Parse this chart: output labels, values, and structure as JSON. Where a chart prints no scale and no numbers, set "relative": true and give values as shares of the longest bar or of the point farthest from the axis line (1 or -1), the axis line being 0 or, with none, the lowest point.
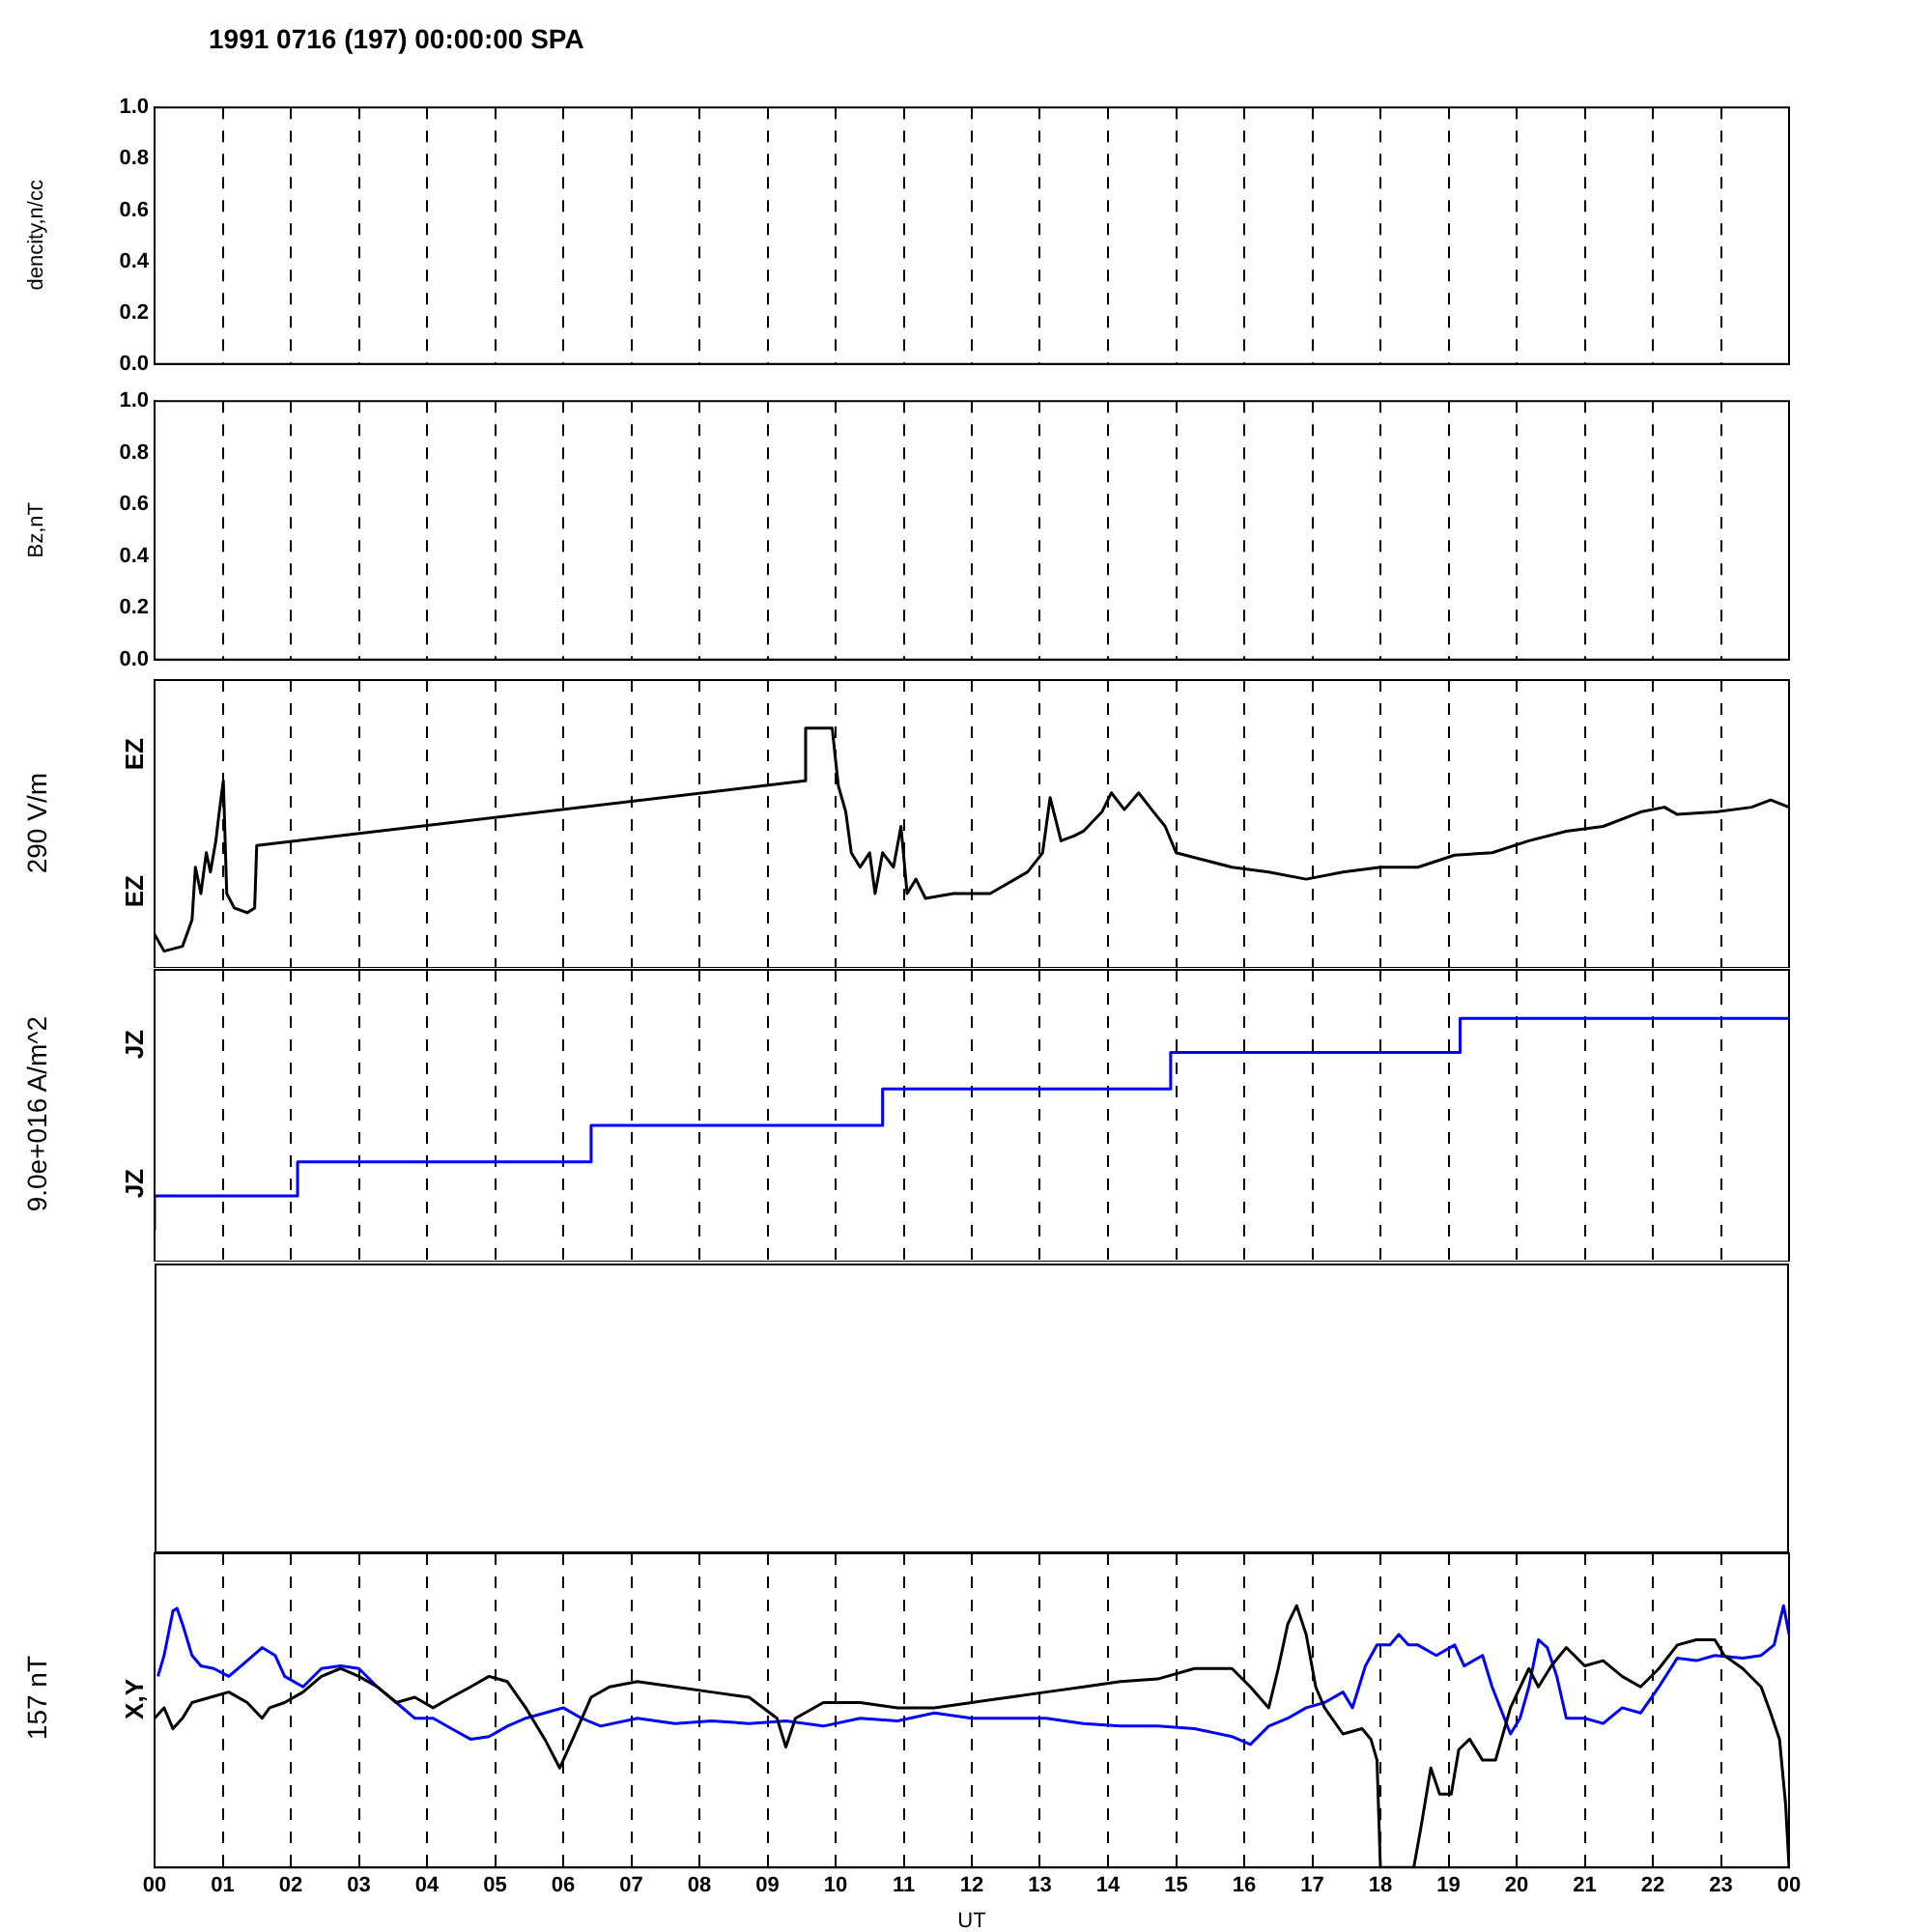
{
  "chart_data": [
    {
      "type": "line",
      "title": "1991 0716 (197) 00:00:00 SPA",
      "ylabel": "dencity,n/cc",
      "xlim": [
        0,
        24
      ],
      "ylim": [
        0,
        1
      ],
      "yticks": [
        {
          "value": 0,
          "label": "0.0"
        },
        {
          "value": 0.2,
          "label": "0.2"
        },
        {
          "value": 0.4,
          "label": "0.4"
        },
        {
          "value": 0.6,
          "label": "0.6"
        },
        {
          "value": 0.8,
          "label": "0.8"
        },
        {
          "value": 1,
          "label": "1.0"
        }
      ],
      "xticks": [
        {
          "value": 0,
          "label": null
        },
        {
          "value": 1,
          "label": null
        },
        {
          "value": 2,
          "label": null
        },
        {
          "value": 3,
          "label": null
        },
        {
          "value": 4,
          "label": null
        },
        {
          "value": 5,
          "label": null
        },
        {
          "value": 6,
          "label": null
        },
        {
          "value": 7,
          "label": null
        },
        {
          "value": 8,
          "label": null
        },
        {
          "value": 9,
          "label": null
        },
        {
          "value": 10,
          "label": null
        },
        {
          "value": 11,
          "label": null
        },
        {
          "value": 12,
          "label": null
        },
        {
          "value": 13,
          "label": null
        },
        {
          "value": 14,
          "label": null
        },
        {
          "value": 15,
          "label": null
        },
        {
          "value": 16,
          "label": null
        },
        {
          "value": 17,
          "label": null
        },
        {
          "value": 18,
          "label": null
        },
        {
          "value": 19,
          "label": null
        },
        {
          "value": 20,
          "label": null
        },
        {
          "value": 21,
          "label": null
        },
        {
          "value": 22,
          "label": null
        },
        {
          "value": 23,
          "label": null
        },
        {
          "value": 24,
          "label": null
        }
      ],
      "tick_labels": "y",
      "grid": "x"
    },
    {
      "type": "line",
      "ylabel": "Bz,nT",
      "xlim": [
        0,
        24
      ],
      "ylim": [
        0,
        1
      ],
      "yticks": [
        {
          "value": 0,
          "label": "0.0"
        },
        {
          "value": 0.2,
          "label": "0.2"
        },
        {
          "value": 0.4,
          "label": "0.4"
        },
        {
          "value": 0.6,
          "label": "0.6"
        },
        {
          "value": 0.8,
          "label": "0.8"
        },
        {
          "value": 1,
          "label": "1.0"
        }
      ],
      "xticks": [
        {
          "value": 0,
          "label": null
        },
        {
          "value": 1,
          "label": null
        },
        {
          "value": 2,
          "label": null
        },
        {
          "value": 3,
          "label": null
        },
        {
          "value": 4,
          "label": null
        },
        {
          "value": 5,
          "label": null
        },
        {
          "value": 6,
          "label": null
        },
        {
          "value": 7,
          "label": null
        },
        {
          "value": 8,
          "label": null
        },
        {
          "value": 9,
          "label": null
        },
        {
          "value": 10,
          "label": null
        },
        {
          "value": 11,
          "label": null
        },
        {
          "value": 12,
          "label": null
        },
        {
          "value": 13,
          "label": null
        },
        {
          "value": 14,
          "label": null
        },
        {
          "value": 15,
          "label": null
        },
        {
          "value": 16,
          "label": null
        },
        {
          "value": 17,
          "label": null
        },
        {
          "value": 18,
          "label": null
        },
        {
          "value": 19,
          "label": null
        },
        {
          "value": 20,
          "label": null
        },
        {
          "value": 21,
          "label": null
        },
        {
          "value": 22,
          "label": null
        },
        {
          "value": 23,
          "label": null
        },
        {
          "value": 24,
          "label": null
        }
      ],
      "tick_labels": "y",
      "grid": "x"
    },
    {
      "type": "line",
      "ylabel": "290 V/m",
      "annotations": [
        "EZ",
        "EZ"
      ],
      "relative": true,
      "xlim": [
        0,
        24
      ],
      "xticks": [
        {
          "value": 0,
          "label": null
        },
        {
          "value": 1,
          "label": null
        },
        {
          "value": 2,
          "label": null
        },
        {
          "value": 3,
          "label": null
        },
        {
          "value": 4,
          "label": null
        },
        {
          "value": 5,
          "label": null
        },
        {
          "value": 6,
          "label": null
        },
        {
          "value": 7,
          "label": null
        },
        {
          "value": 8,
          "label": null
        },
        {
          "value": 9,
          "label": null
        },
        {
          "value": 10,
          "label": null
        },
        {
          "value": 11,
          "label": null
        },
        {
          "value": 12,
          "label": null
        },
        {
          "value": 13,
          "label": null
        },
        {
          "value": 14,
          "label": null
        },
        {
          "value": 15,
          "label": null
        },
        {
          "value": 16,
          "label": null
        },
        {
          "value": 17,
          "label": null
        },
        {
          "value": 18,
          "label": null
        },
        {
          "value": 19,
          "label": null
        },
        {
          "value": 20,
          "label": null
        },
        {
          "value": 21,
          "label": null
        },
        {
          "value": 22,
          "label": null
        },
        {
          "value": 23,
          "label": null
        },
        {
          "value": 24,
          "label": null
        }
      ],
      "tick_labels": false,
      "grid": "x",
      "series": [
        {
          "color": "#000000",
          "x": [
            0,
            0.14,
            0.41,
            0.55,
            0.6,
            0.68,
            0.76,
            0.82,
            0.9,
            0.95,
            1.01,
            1.06,
            1.17,
            1.36,
            1.47,
            1.5,
            9.55,
            9.56,
            9.95,
            10.04,
            10.15,
            10.23,
            10.36,
            10.5,
            10.58,
            10.69,
            10.85,
            10.96,
            11.05,
            11.18,
            11.32,
            11.73,
            12.27,
            12.82,
            13.04,
            13.15,
            13.31,
            13.5,
            13.64,
            13.91,
            14.05,
            14.24,
            14.45,
            14.67,
            14.84,
            15.0,
            15.27,
            15.82,
            16.36,
            16.91,
            17.45,
            18.0,
            18.55,
            19.09,
            19.64,
            20.18,
            20.73,
            21.27,
            21.82,
            22.17,
            22.36,
            22.91,
            23.45,
            23.73,
            24
          ],
          "values": [
            0.14,
            0.07,
            0.09,
            0.2,
            0.42,
            0.31,
            0.48,
            0.4,
            0.53,
            0.65,
            0.78,
            0.31,
            0.25,
            0.23,
            0.25,
            0.51,
            0.78,
            1.0,
            1.0,
            0.76,
            0.65,
            0.48,
            0.42,
            0.48,
            0.31,
            0.48,
            0.42,
            0.59,
            0.31,
            0.37,
            0.29,
            0.31,
            0.31,
            0.4,
            0.48,
            0.71,
            0.53,
            0.55,
            0.57,
            0.65,
            0.73,
            0.66,
            0.73,
            0.65,
            0.59,
            0.48,
            0.46,
            0.42,
            0.4,
            0.37,
            0.4,
            0.42,
            0.42,
            0.47,
            0.48,
            0.53,
            0.57,
            0.59,
            0.65,
            0.67,
            0.64,
            0.65,
            0.67,
            0.7,
            0.67
          ]
        }
      ]
    },
    {
      "type": "line",
      "ylabel": "9.0e+016 A/m^2",
      "annotations": [
        "JZ",
        "JZ"
      ],
      "relative": true,
      "xlim": [
        0,
        24
      ],
      "xticks": [
        {
          "value": 0,
          "label": null
        },
        {
          "value": 1,
          "label": null
        },
        {
          "value": 2,
          "label": null
        },
        {
          "value": 3,
          "label": null
        },
        {
          "value": 4,
          "label": null
        },
        {
          "value": 5,
          "label": null
        },
        {
          "value": 6,
          "label": null
        },
        {
          "value": 7,
          "label": null
        },
        {
          "value": 8,
          "label": null
        },
        {
          "value": 9,
          "label": null
        },
        {
          "value": 10,
          "label": null
        },
        {
          "value": 11,
          "label": null
        },
        {
          "value": 12,
          "label": null
        },
        {
          "value": 13,
          "label": null
        },
        {
          "value": 14,
          "label": null
        },
        {
          "value": 15,
          "label": null
        },
        {
          "value": 16,
          "label": null
        },
        {
          "value": 17,
          "label": null
        },
        {
          "value": 18,
          "label": null
        },
        {
          "value": 19,
          "label": null
        },
        {
          "value": 20,
          "label": null
        },
        {
          "value": 21,
          "label": null
        },
        {
          "value": 22,
          "label": null
        },
        {
          "value": 23,
          "label": null
        },
        {
          "value": 24,
          "label": null
        }
      ],
      "tick_labels": false,
      "grid": "x",
      "series": [
        {
          "type": "step",
          "color": "#0000ff",
          "x": [
            0,
            2.1,
            6.41,
            10.69,
            14.92,
            19.17,
            23.4,
            24
          ],
          "values": [
            0.13,
            0.27,
            0.41,
            0.56,
            0.71,
            0.86,
            1.0,
            1.0
          ]
        }
      ]
    },
    {
      "type": "other"
    },
    {
      "type": "line",
      "ylabel": "157 nT",
      "annotations": [
        "X,Y"
      ],
      "xlabel": "UT",
      "relative": true,
      "xlim": [
        0,
        24
      ],
      "xticks": [
        {
          "value": 0,
          "label": "00"
        },
        {
          "value": 1,
          "label": "01"
        },
        {
          "value": 2,
          "label": "02"
        },
        {
          "value": 3,
          "label": "03"
        },
        {
          "value": 4,
          "label": "04"
        },
        {
          "value": 5,
          "label": "05"
        },
        {
          "value": 6,
          "label": "06"
        },
        {
          "value": 7,
          "label": "07"
        },
        {
          "value": 8,
          "label": "08"
        },
        {
          "value": 9,
          "label": "09"
        },
        {
          "value": 10,
          "label": "10"
        },
        {
          "value": 11,
          "label": "11"
        },
        {
          "value": 12,
          "label": "12"
        },
        {
          "value": 13,
          "label": "13"
        },
        {
          "value": 14,
          "label": "14"
        },
        {
          "value": 15,
          "label": "15"
        },
        {
          "value": 16,
          "label": "16"
        },
        {
          "value": 17,
          "label": "17"
        },
        {
          "value": 18,
          "label": "18"
        },
        {
          "value": 19,
          "label": "19"
        },
        {
          "value": 20,
          "label": "20"
        },
        {
          "value": 21,
          "label": "21"
        },
        {
          "value": 22,
          "label": "22"
        },
        {
          "value": 23,
          "label": "23"
        },
        {
          "value": 24,
          "label": "00"
        }
      ],
      "tick_labels": "x",
      "grid": "x",
      "series": [
        {
          "color": "#000000",
          "x": [
            0,
            0.14,
            0.27,
            0.41,
            0.55,
            0.82,
            1.09,
            1.36,
            1.58,
            1.69,
            1.91,
            2.18,
            2.45,
            2.73,
            3.0,
            3.27,
            3.55,
            3.82,
            4.09,
            4.36,
            4.64,
            4.91,
            5.18,
            5.45,
            5.73,
            5.95,
            6.14,
            6.41,
            6.68,
            7.09,
            7.64,
            8.18,
            8.73,
            9.14,
            9.27,
            9.41,
            9.82,
            10.36,
            10.91,
            11.45,
            12.0,
            12.55,
            13.09,
            13.64,
            14.18,
            14.73,
            15.27,
            15.82,
            16.09,
            16.36,
            16.5,
            16.64,
            16.77,
            16.91,
            17.05,
            17.18,
            17.45,
            17.73,
            17.86,
            17.95,
            18.0,
            18.14,
            18.41,
            18.49,
            18.6,
            18.74,
            18.87,
            19.04,
            19.15,
            19.31,
            19.5,
            19.69,
            19.91,
            20.18,
            20.32,
            20.51,
            20.73,
            21.0,
            21.27,
            21.55,
            21.82,
            22.09,
            22.36,
            22.64,
            22.91,
            23.05,
            23.32,
            23.59,
            23.73,
            23.86,
            23.95,
            24
          ],
          "values": [
            0.57,
            0.61,
            0.53,
            0.57,
            0.63,
            0.65,
            0.67,
            0.63,
            0.57,
            0.61,
            0.63,
            0.67,
            0.73,
            0.76,
            0.73,
            0.69,
            0.63,
            0.65,
            0.61,
            0.65,
            0.69,
            0.73,
            0.71,
            0.61,
            0.49,
            0.38,
            0.49,
            0.65,
            0.69,
            0.71,
            0.69,
            0.67,
            0.65,
            0.57,
            0.46,
            0.57,
            0.63,
            0.63,
            0.61,
            0.61,
            0.63,
            0.65,
            0.67,
            0.69,
            0.71,
            0.72,
            0.76,
            0.76,
            0.69,
            0.61,
            0.76,
            0.93,
            1.0,
            0.89,
            0.69,
            0.61,
            0.51,
            0.53,
            0.49,
            0.41,
            0,
            0,
            0,
            0,
            0.16,
            0.38,
            0.28,
            0.28,
            0.45,
            0.49,
            0.41,
            0.41,
            0.61,
            0.76,
            0.69,
            0.77,
            0.84,
            0.77,
            0.79,
            0.73,
            0.69,
            0.76,
            0.85,
            0.87,
            0.87,
            0.81,
            0.76,
            0.69,
            0.59,
            0.49,
            0.24,
            0
          ]
        },
        {
          "color": "#0000ff",
          "x": [
            0.05,
            0.14,
            0.27,
            0.33,
            0.41,
            0.55,
            0.68,
            0.87,
            1.09,
            1.36,
            1.58,
            1.77,
            1.91,
            2.18,
            2.45,
            2.73,
            3.0,
            3.27,
            3.55,
            3.82,
            4.09,
            4.36,
            4.64,
            4.91,
            5.18,
            5.45,
            5.73,
            6.0,
            6.27,
            6.55,
            7.09,
            7.64,
            8.18,
            8.73,
            9.27,
            9.82,
            10.36,
            10.91,
            11.45,
            12.0,
            12.55,
            13.09,
            13.64,
            14.18,
            14.73,
            15.27,
            15.82,
            16.09,
            16.36,
            16.64,
            16.91,
            17.18,
            17.45,
            17.59,
            17.78,
            17.95,
            18.14,
            18.27,
            18.41,
            18.55,
            18.82,
            19.09,
            19.23,
            19.5,
            19.64,
            19.91,
            20.05,
            20.18,
            20.32,
            20.45,
            20.59,
            20.73,
            21.0,
            21.27,
            21.55,
            21.82,
            22.09,
            22.36,
            22.64,
            22.91,
            23.32,
            23.59,
            23.78,
            23.92,
            24.0
          ],
          "values": [
            0.73,
            0.81,
            0.98,
            0.99,
            0.93,
            0.81,
            0.77,
            0.76,
            0.73,
            0.79,
            0.84,
            0.81,
            0.73,
            0.69,
            0.76,
            0.77,
            0.76,
            0.69,
            0.63,
            0.57,
            0.57,
            0.53,
            0.49,
            0.5,
            0.54,
            0.57,
            0.59,
            0.61,
            0.57,
            0.54,
            0.57,
            0.55,
            0.56,
            0.55,
            0.56,
            0.54,
            0.57,
            0.56,
            0.59,
            0.57,
            0.57,
            0.57,
            0.55,
            0.54,
            0.54,
            0.53,
            0.5,
            0.47,
            0.54,
            0.57,
            0.61,
            0.63,
            0.67,
            0.61,
            0.77,
            0.85,
            0.85,
            0.89,
            0.85,
            0.85,
            0.81,
            0.85,
            0.77,
            0.81,
            0.69,
            0.51,
            0.57,
            0.69,
            0.87,
            0.84,
            0.73,
            0.57,
            0.57,
            0.55,
            0.61,
            0.59,
            0.69,
            0.8,
            0.79,
            0.81,
            0.8,
            0.81,
            0.85,
            1.0,
            0.89
          ]
        }
      ]
    }
  ]
}
